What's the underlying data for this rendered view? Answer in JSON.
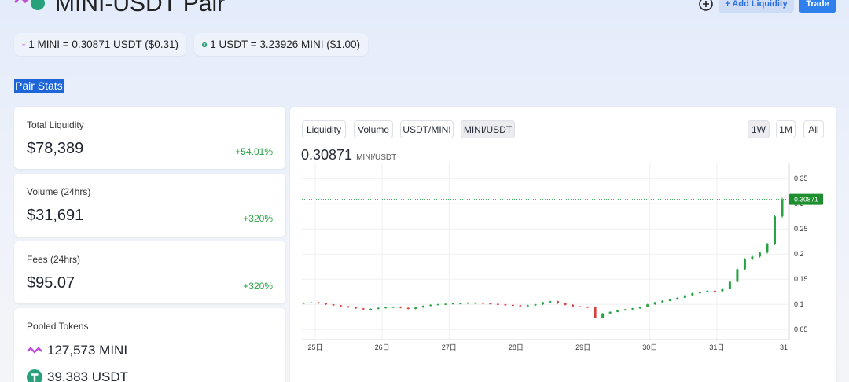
{
  "header": {
    "title": "MINI-USDT Pair",
    "add_liquidity_label": "+ Add Liquidity",
    "trade_label": "Trade"
  },
  "rates": {
    "mini_to_usdt": "1 MINI = 0.30871 USDT ($0.31)",
    "usdt_to_mini": "1 USDT = 3.23926 MINI ($1.00)"
  },
  "section_title": "Pair Stats",
  "stats": {
    "total_liquidity": {
      "label": "Total Liquidity",
      "value": "$78,389",
      "change": "+54.01%"
    },
    "volume": {
      "label": "Volume (24hrs)",
      "value": "$31,691",
      "change": "+320%"
    },
    "fees": {
      "label": "Fees (24hrs)",
      "value": "$95.07",
      "change": "+320%"
    }
  },
  "pooled": {
    "label": "Pooled Tokens",
    "mini": "127,573 MINI",
    "usdt": "39,383 USDT"
  },
  "chart_tabs": [
    "Liquidity",
    "Volume",
    "USDT/MINI",
    "MINI/USDT"
  ],
  "range_tabs": [
    "1W",
    "1M",
    "All"
  ],
  "current_price": "0.30871",
  "price_unit": "MINI/USDT",
  "colors": {
    "up": "#26a243",
    "down": "#d64040",
    "accent": "#2f80ed",
    "badge": "#1e8f2e"
  },
  "chart_data": {
    "type": "candlestick",
    "x_ticks": [
      "25日",
      "26日",
      "27日",
      "28日",
      "29日",
      "30日",
      "31日",
      "31"
    ],
    "y_ticks": [
      0.05,
      0.1,
      0.15,
      0.2,
      0.25,
      0.3,
      0.35
    ],
    "ylim": [
      0.03,
      0.38
    ],
    "current_price_label": "0.30871",
    "current_price": 0.30871,
    "grid": true,
    "candles_close": [
      0.103,
      0.104,
      0.102,
      0.1,
      0.098,
      0.096,
      0.094,
      0.092,
      0.09,
      0.091,
      0.093,
      0.094,
      0.095,
      0.093,
      0.091,
      0.094,
      0.097,
      0.099,
      0.1,
      0.101,
      0.102,
      0.102,
      0.103,
      0.103,
      0.102,
      0.101,
      0.1,
      0.099,
      0.098,
      0.097,
      0.098,
      0.1,
      0.104,
      0.106,
      0.102,
      0.099,
      0.096,
      0.095,
      0.094,
      0.073,
      0.082,
      0.085,
      0.088,
      0.09,
      0.092,
      0.095,
      0.1,
      0.104,
      0.107,
      0.11,
      0.113,
      0.118,
      0.122,
      0.125,
      0.127,
      0.126,
      0.13,
      0.145,
      0.17,
      0.19,
      0.195,
      0.203,
      0.22,
      0.275,
      0.309
    ]
  }
}
